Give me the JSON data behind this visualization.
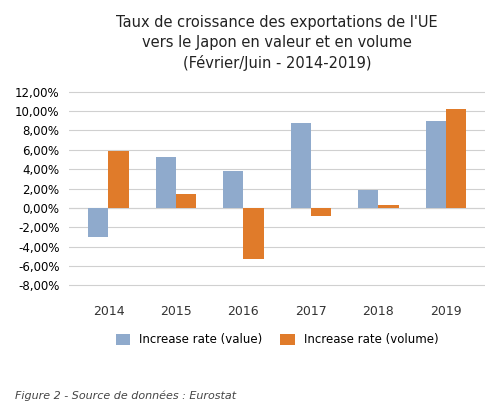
{
  "title_line1": "Taux de croissance des exportations de l'UE",
  "title_line2": "vers le Japon en valeur et en volume",
  "title_line3": "(Février/Juin - 2014-2019)",
  "categories": [
    "2014",
    "2015",
    "2016",
    "2017",
    "2018",
    "2019"
  ],
  "value_series": [
    -0.03,
    0.053,
    0.038,
    0.088,
    0.018,
    0.09
  ],
  "volume_series": [
    0.059,
    0.014,
    -0.053,
    -0.008,
    0.003,
    0.102
  ],
  "value_color": "#8faacc",
  "volume_color": "#e07b2a",
  "legend_value": "Increase rate (value)",
  "legend_volume": "Increase rate (volume)",
  "caption": "Figure 2 - Source de données : Eurostat",
  "ylim": [
    -0.09,
    0.13
  ],
  "yticks": [
    -0.08,
    -0.06,
    -0.04,
    -0.02,
    0.0,
    0.02,
    0.04,
    0.06,
    0.08,
    0.1,
    0.12
  ],
  "background_color": "#ffffff",
  "grid_color": "#d0d0d0"
}
